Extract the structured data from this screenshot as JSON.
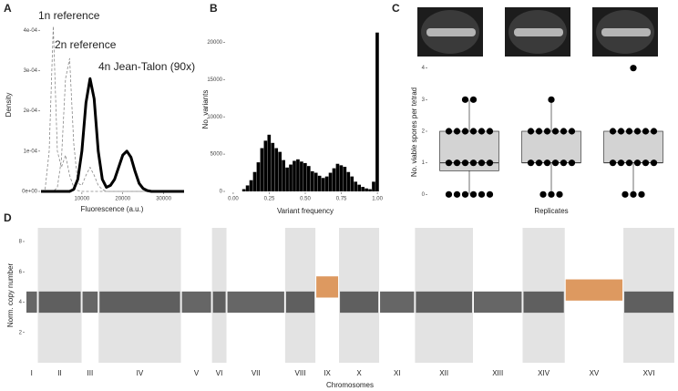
{
  "chart_data": [
    {
      "type": "line",
      "panel": "A",
      "xlabel": "Fluorescence (a.u.)",
      "ylabel": "Density",
      "x": [
        0,
        1000,
        2000,
        3000,
        4000,
        5000,
        6000,
        7000,
        8000,
        9000,
        10000,
        11000,
        12000,
        13000,
        14000,
        15000,
        16000,
        17000,
        18000,
        19000,
        20000,
        21000,
        22000,
        23000,
        24000,
        25000,
        26000,
        27000,
        28000,
        29000,
        30000,
        31000,
        32000,
        33000,
        34000,
        35000
      ],
      "series": [
        {
          "name": "1n reference",
          "color": "#888888",
          "values": [
            0,
            5e-06,
            0.0001,
            0.00041,
            0.0001,
            6e-05,
            9e-05,
            4e-05,
            1e-05,
            2e-06,
            0,
            0,
            0,
            0,
            0,
            0,
            0,
            0,
            0,
            0,
            0,
            0,
            0,
            0,
            0,
            0,
            0,
            0,
            0,
            0,
            0,
            0,
            0,
            0,
            0,
            0
          ]
        },
        {
          "name": "2n reference",
          "color": "#888888",
          "values": [
            0,
            0,
            0,
            0,
            1e-05,
            8e-05,
            0.00028,
            0.00033,
            0.00012,
            2e-05,
            1.5e-05,
            4e-05,
            6e-05,
            4e-05,
            1.5e-05,
            5e-06,
            0,
            0,
            0,
            0,
            0,
            0,
            0,
            0,
            0,
            0,
            0,
            0,
            0,
            0,
            0,
            0,
            0,
            0,
            0,
            0
          ]
        },
        {
          "name": "4n Jean-Talon (90x)",
          "color": "#000000",
          "values": [
            0,
            0,
            0,
            0,
            0,
            0,
            0,
            0,
            5e-06,
            3e-05,
            0.0001,
            0.00022,
            0.00028,
            0.00023,
            0.0001,
            3e-05,
            1e-05,
            1.5e-05,
            3e-05,
            6e-05,
            9e-05,
            0.0001,
            8.5e-05,
            5e-05,
            2e-05,
            7e-06,
            2e-06,
            0,
            0,
            0,
            0,
            0,
            0,
            0,
            0,
            0
          ]
        }
      ],
      "xlim": [
        0,
        35000
      ],
      "xticks": [
        10000,
        20000,
        30000
      ],
      "ylim": [
        0,
        0.00043
      ],
      "yticks": [
        {
          "value": 0,
          "label": "0e+00"
        },
        {
          "value": 0.0001,
          "label": "1e-04"
        },
        {
          "value": 0.0002,
          "label": "2e-04"
        },
        {
          "value": 0.0003,
          "label": "3e-04"
        },
        {
          "value": 0.0004,
          "label": "4e-04"
        }
      ]
    },
    {
      "type": "histogram",
      "panel": "B",
      "xlabel": "Variant frequency",
      "ylabel": "No. variants",
      "color": "#000000",
      "bins": [
        0.0125,
        0.0375,
        0.0625,
        0.0875,
        0.1125,
        0.1375,
        0.1625,
        0.1875,
        0.2125,
        0.2375,
        0.2625,
        0.2875,
        0.3125,
        0.3375,
        0.3625,
        0.3875,
        0.4125,
        0.4375,
        0.4625,
        0.4875,
        0.5125,
        0.5375,
        0.5625,
        0.5875,
        0.6125,
        0.6375,
        0.6625,
        0.6875,
        0.7125,
        0.7375,
        0.7625,
        0.7875,
        0.8125,
        0.8375,
        0.8625,
        0.8875,
        0.9125,
        0.9375,
        0.9625,
        0.9875,
        1.0125
      ],
      "counts": [
        0,
        0,
        300,
        800,
        1500,
        2600,
        3900,
        5800,
        6800,
        7600,
        6500,
        5800,
        5300,
        4200,
        3200,
        3600,
        4100,
        4300,
        4000,
        3800,
        3400,
        2700,
        2500,
        2100,
        1800,
        2000,
        2500,
        3100,
        3700,
        3500,
        3300,
        2600,
        2000,
        1300,
        900,
        600,
        400,
        300,
        1300,
        21300
      ],
      "xlim": [
        -0.05,
        1.05
      ],
      "xticks": [
        {
          "value": 0,
          "label": "0.00"
        },
        {
          "value": 0.25,
          "label": "0.25"
        },
        {
          "value": 0.5,
          "label": "0.50"
        },
        {
          "value": 0.75,
          "label": "0.75"
        },
        {
          "value": 1,
          "label": "1.00"
        }
      ],
      "ylim": [
        0,
        22000
      ],
      "yticks": [
        0,
        5000,
        10000,
        15000,
        20000
      ]
    },
    {
      "type": "box",
      "panel": "C",
      "xlabel": "Replicates",
      "ylabel": "No. viable spores per tetrad",
      "box_color": "#d3d3d3",
      "dot_color": "#000000",
      "series": [
        {
          "values": [
            0,
            0,
            0,
            0,
            0,
            0,
            1,
            1,
            1,
            1,
            1,
            1,
            2,
            2,
            2,
            2,
            2,
            2,
            3,
            3
          ],
          "box": {
            "min": 0,
            "q1": 0.75,
            "median": 1,
            "q3": 2,
            "max": 3
          }
        },
        {
          "values": [
            0,
            0,
            0,
            1,
            1,
            1,
            1,
            1,
            1,
            2,
            2,
            2,
            2,
            2,
            2,
            3
          ],
          "box": {
            "min": 0,
            "q1": 1,
            "median": 1,
            "q3": 2,
            "max": 3
          }
        },
        {
          "values": [
            0,
            0,
            0,
            1,
            1,
            1,
            1,
            1,
            1,
            2,
            2,
            2,
            2,
            2,
            2,
            4
          ],
          "box": {
            "min": 0,
            "q1": 1,
            "median": 1,
            "q3": 2,
            "max": 2
          }
        }
      ],
      "ylim": [
        -0.25,
        4.25
      ],
      "yticks": [
        0,
        1,
        2,
        3,
        4
      ]
    },
    {
      "type": "strip",
      "panel": "D",
      "xlabel": "Chromosomes",
      "ylabel": "Norm. copy number",
      "categories": [
        "I",
        "II",
        "III",
        "IV",
        "V",
        "VI",
        "VII",
        "VIII",
        "IX",
        "X",
        "XI",
        "XII",
        "XIII",
        "XIV",
        "XV",
        "XVI"
      ],
      "values": [
        4,
        4,
        4,
        4,
        4,
        4,
        4,
        4,
        5,
        4,
        4,
        4,
        4,
        4,
        4.8,
        4
      ],
      "colors": [
        "#333333",
        "#333333",
        "#333333",
        "#333333",
        "#333333",
        "#333333",
        "#333333",
        "#333333",
        "#d2772b",
        "#333333",
        "#333333",
        "#333333",
        "#333333",
        "#333333",
        "#d2772b",
        "#333333"
      ],
      "ylim": [
        0,
        8.9
      ],
      "yticks": [
        2,
        4,
        6,
        8
      ]
    }
  ]
}
